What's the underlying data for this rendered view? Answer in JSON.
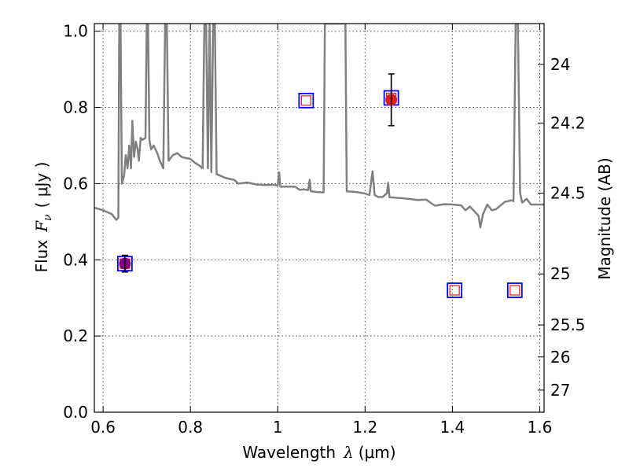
{
  "chart_data": {
    "type": "scatter",
    "title": "",
    "xlabel": "Wavelength",
    "xlabel_math": "λ",
    "xlabel_unit": "(μm)",
    "ylabel": "Flux",
    "ylabel_math": "F",
    "ylabel_math_sub": "ν",
    "ylabel_unit": "( μJy )",
    "y2label": "Magnitude (AB)",
    "xlim": [
      0.58,
      1.61
    ],
    "ylim": [
      0.0,
      1.02
    ],
    "grid": true,
    "x_ticks": [
      {
        "value": 0.6,
        "label": "0.6"
      },
      {
        "value": 0.8,
        "label": "0.8"
      },
      {
        "value": 1.0,
        "label": "1"
      },
      {
        "value": 1.2,
        "label": "1.2"
      },
      {
        "value": 1.4,
        "label": "1.4"
      },
      {
        "value": 1.6,
        "label": "1.6"
      }
    ],
    "y_ticks": [
      {
        "value": 0.0,
        "label": "0.0"
      },
      {
        "value": 0.2,
        "label": "0.2"
      },
      {
        "value": 0.4,
        "label": "0.4"
      },
      {
        "value": 0.6,
        "label": "0.6"
      },
      {
        "value": 0.8,
        "label": "0.8"
      },
      {
        "value": 1.0,
        "label": "1.0"
      }
    ],
    "y2_ticks": [
      {
        "flux": 0.913,
        "label": "24"
      },
      {
        "flux": 0.759,
        "label": "24.2"
      },
      {
        "flux": 0.575,
        "label": "24.5"
      },
      {
        "flux": 0.363,
        "label": "25"
      },
      {
        "flux": 0.229,
        "label": "25.5"
      },
      {
        "flux": 0.145,
        "label": "26"
      },
      {
        "flux": 0.058,
        "label": "27"
      }
    ],
    "series": [
      {
        "kind": "line",
        "color": "#808080",
        "points": [
          [
            0.58,
            0.537
          ],
          [
            0.6,
            0.53
          ],
          [
            0.62,
            0.52
          ],
          [
            0.63,
            0.505
          ],
          [
            0.635,
            0.51
          ],
          [
            0.637,
            1.02
          ],
          [
            0.64,
            1.02
          ],
          [
            0.643,
            0.6
          ],
          [
            0.648,
            0.62
          ],
          [
            0.652,
            0.675
          ],
          [
            0.656,
            0.64
          ],
          [
            0.66,
            0.7
          ],
          [
            0.664,
            0.64
          ],
          [
            0.667,
            0.765
          ],
          [
            0.671,
            0.67
          ],
          [
            0.675,
            0.71
          ],
          [
            0.679,
            0.69
          ],
          [
            0.682,
            0.66
          ],
          [
            0.686,
            0.72
          ],
          [
            0.69,
            0.715
          ],
          [
            0.697,
            0.72
          ],
          [
            0.7,
            1.02
          ],
          [
            0.703,
            1.02
          ],
          [
            0.706,
            0.715
          ],
          [
            0.71,
            0.69
          ],
          [
            0.716,
            0.7
          ],
          [
            0.72,
            0.69
          ],
          [
            0.724,
            0.68
          ],
          [
            0.73,
            0.66
          ],
          [
            0.738,
            0.64
          ],
          [
            0.742,
            1.02
          ],
          [
            0.746,
            1.02
          ],
          [
            0.75,
            0.66
          ],
          [
            0.76,
            0.675
          ],
          [
            0.77,
            0.68
          ],
          [
            0.78,
            0.67
          ],
          [
            0.79,
            0.667
          ],
          [
            0.8,
            0.665
          ],
          [
            0.81,
            0.655
          ],
          [
            0.82,
            0.648
          ],
          [
            0.828,
            0.64
          ],
          [
            0.832,
            1.02
          ],
          [
            0.836,
            1.02
          ],
          [
            0.84,
            0.64
          ],
          [
            0.844,
            1.02
          ],
          [
            0.848,
            0.63
          ],
          [
            0.852,
            1.02
          ],
          [
            0.856,
            1.02
          ],
          [
            0.86,
            0.625
          ],
          [
            0.87,
            0.62
          ],
          [
            0.88,
            0.615
          ],
          [
            0.9,
            0.61
          ],
          [
            0.91,
            0.6
          ],
          [
            0.93,
            0.603
          ],
          [
            0.95,
            0.598
          ],
          [
            0.97,
            0.596
          ],
          [
            0.99,
            0.597
          ],
          [
            1.0,
            0.595
          ],
          [
            1.003,
            0.63
          ],
          [
            1.006,
            0.592
          ],
          [
            1.02,
            0.592
          ],
          [
            1.04,
            0.592
          ],
          [
            1.05,
            0.584
          ],
          [
            1.06,
            0.585
          ],
          [
            1.07,
            0.583
          ],
          [
            1.073,
            0.61
          ],
          [
            1.076,
            0.58
          ],
          [
            1.09,
            0.578
          ],
          [
            1.105,
            0.577
          ],
          [
            1.108,
            1.02
          ],
          [
            1.155,
            1.02
          ],
          [
            1.158,
            0.58
          ],
          [
            1.18,
            0.578
          ],
          [
            1.2,
            0.574
          ],
          [
            1.21,
            0.57
          ],
          [
            1.217,
            0.632
          ],
          [
            1.222,
            0.57
          ],
          [
            1.23,
            0.565
          ],
          [
            1.24,
            0.565
          ],
          [
            1.25,
            0.575
          ],
          [
            1.253,
            0.602
          ],
          [
            1.256,
            0.564
          ],
          [
            1.28,
            0.562
          ],
          [
            1.3,
            0.56
          ],
          [
            1.32,
            0.557
          ],
          [
            1.34,
            0.558
          ],
          [
            1.35,
            0.55
          ],
          [
            1.36,
            0.542
          ],
          [
            1.38,
            0.546
          ],
          [
            1.4,
            0.545
          ],
          [
            1.42,
            0.543
          ],
          [
            1.43,
            0.53
          ],
          [
            1.44,
            0.54
          ],
          [
            1.45,
            0.528
          ],
          [
            1.46,
            0.515
          ],
          [
            1.464,
            0.485
          ],
          [
            1.47,
            0.52
          ],
          [
            1.48,
            0.545
          ],
          [
            1.49,
            0.53
          ],
          [
            1.5,
            0.533
          ],
          [
            1.52,
            0.552
          ],
          [
            1.535,
            0.556
          ],
          [
            1.54,
            0.554
          ],
          [
            1.545,
            1.02
          ],
          [
            1.55,
            1.02
          ],
          [
            1.555,
            0.575
          ],
          [
            1.56,
            0.55
          ],
          [
            1.57,
            0.56
          ],
          [
            1.58,
            0.545
          ],
          [
            1.61,
            0.545
          ]
        ]
      },
      {
        "kind": "model-squares",
        "points": [
          {
            "x": 0.65,
            "y": 0.39
          },
          {
            "x": 1.065,
            "y": 0.818
          },
          {
            "x": 1.26,
            "y": 0.825
          },
          {
            "x": 1.405,
            "y": 0.32
          },
          {
            "x": 1.543,
            "y": 0.32
          }
        ]
      },
      {
        "kind": "observed",
        "points": [
          {
            "x": 0.65,
            "y": 0.39,
            "yerr": 0.022,
            "color": "#800080"
          },
          {
            "x": 1.26,
            "y": 0.82,
            "yerr": 0.068,
            "color": "#e41a1c"
          }
        ]
      }
    ]
  }
}
